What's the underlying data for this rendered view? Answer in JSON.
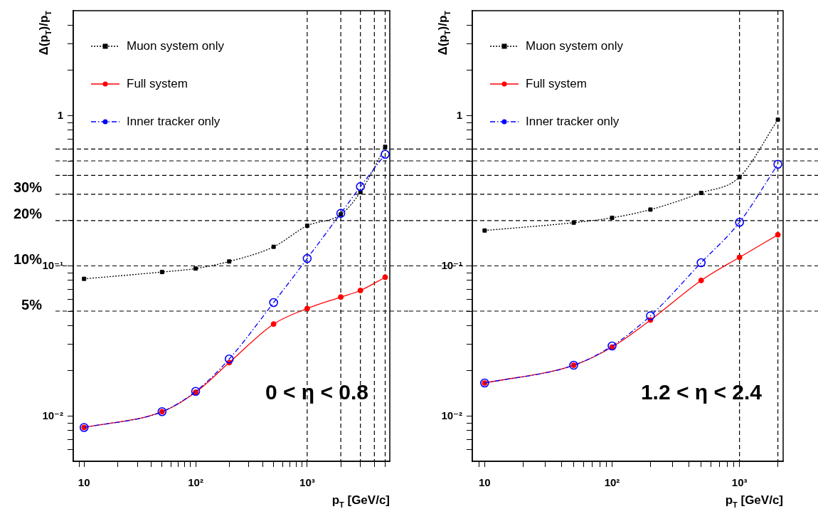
{
  "chart_data": [
    {
      "type": "line",
      "xlabel": "p$_{T}$ [GeV/c]",
      "ylabel": "Δ(p$_{T}$)/p$_{T}$",
      "log": "xy",
      "legend": "top left",
      "x": [
        10,
        50,
        100,
        200,
        500,
        1000,
        2000,
        3000,
        5000
      ],
      "series": [
        {
          "name": "Muon system only",
          "color": "#000000",
          "marker": "square",
          "line_style": "dotted",
          "values": [
            0.082,
            0.091,
            0.096,
            0.107,
            0.134,
            0.185,
            0.22,
            0.31,
            0.62
          ]
        },
        {
          "name": "Full system",
          "color": "#ff0000",
          "marker": "circle",
          "line_style": "solid",
          "values": [
            0.0084,
            0.0107,
            0.0144,
            0.0227,
            0.041,
            0.052,
            0.062,
            0.0686,
            0.084
          ]
        },
        {
          "name": "Inner tracker only",
          "color": "#0000ff",
          "marker": "circle",
          "line_style": "dashed",
          "values": [
            0.0084,
            0.0107,
            0.0146,
            0.024,
            0.057,
            0.112,
            0.224,
            0.337,
            0.553
          ]
        }
      ],
      "xlim": [
        8,
        5500
      ],
      "ylim": [
        0.005,
        5
      ],
      "xticks": [
        {
          "value": 9,
          "label": null
        },
        {
          "value": 10,
          "label": "10"
        },
        {
          "value": 20,
          "label": null
        },
        {
          "value": 30,
          "label": null
        },
        {
          "value": 40,
          "label": null
        },
        {
          "value": 50,
          "label": null
        },
        {
          "value": 60,
          "label": null
        },
        {
          "value": 70,
          "label": null
        },
        {
          "value": 80,
          "label": null
        },
        {
          "value": 90,
          "label": null
        },
        {
          "value": 100,
          "label": "10²"
        },
        {
          "value": 200,
          "label": null
        },
        {
          "value": 300,
          "label": null
        },
        {
          "value": 400,
          "label": null
        },
        {
          "value": 500,
          "label": null
        },
        {
          "value": 600,
          "label": null
        },
        {
          "value": 700,
          "label": null
        },
        {
          "value": 800,
          "label": null
        },
        {
          "value": 900,
          "label": null
        },
        {
          "value": 1000,
          "label": "10³"
        },
        {
          "value": 2000,
          "label": null
        },
        {
          "value": 3000,
          "label": null
        },
        {
          "value": 4000,
          "label": null
        },
        {
          "value": 5000,
          "label": null
        }
      ],
      "yticks": [
        {
          "value": 0.006,
          "label": null
        },
        {
          "value": 0.007,
          "label": null
        },
        {
          "value": 0.008,
          "label": null
        },
        {
          "value": 0.009,
          "label": null
        },
        {
          "value": 0.01,
          "label": "10⁻²"
        },
        {
          "value": 0.02,
          "label": null
        },
        {
          "value": 0.03,
          "label": null
        },
        {
          "value": 0.04,
          "label": null
        },
        {
          "value": 0.05,
          "label": null
        },
        {
          "value": 0.06,
          "label": null
        },
        {
          "value": 0.07,
          "label": null
        },
        {
          "value": 0.08,
          "label": null
        },
        {
          "value": 0.09,
          "label": null
        },
        {
          "value": 0.1,
          "label": "10⁻¹"
        },
        {
          "value": 0.2,
          "label": null
        },
        {
          "value": 0.3,
          "label": null
        },
        {
          "value": 0.4,
          "label": null
        },
        {
          "value": 0.5,
          "label": null
        },
        {
          "value": 0.6,
          "label": null
        },
        {
          "value": 0.7,
          "label": null
        },
        {
          "value": 0.8,
          "label": null
        },
        {
          "value": 0.9,
          "label": null
        },
        {
          "value": 1,
          "label": "1"
        },
        {
          "value": 2,
          "label": null
        },
        {
          "value": 3,
          "label": null
        },
        {
          "value": 4,
          "label": null
        }
      ],
      "ref_lines": [
        {
          "axis": "y",
          "value": 0.6,
          "label": null,
          "line_style": "dashed",
          "color": "#000000"
        },
        {
          "axis": "y",
          "value": 0.5,
          "label": null,
          "line_style": "dashed",
          "color": "#000000"
        },
        {
          "axis": "y",
          "value": 0.4,
          "label": null,
          "line_style": "dashed",
          "color": "#000000"
        },
        {
          "axis": "y",
          "value": 0.3,
          "label": "30%",
          "line_style": "dashed",
          "color": "#000000"
        },
        {
          "axis": "y",
          "value": 0.2,
          "label": "20%",
          "line_style": "dashed",
          "color": "#000000"
        },
        {
          "axis": "y",
          "value": 0.1,
          "label": "10%",
          "line_style": "dashed",
          "color": "#000000"
        },
        {
          "axis": "y",
          "value": 0.05,
          "label": "5%",
          "line_style": "dashed",
          "color": "#000000"
        },
        {
          "axis": "x",
          "value": 1000,
          "label": null,
          "line_style": "dashed",
          "color": "#000000"
        },
        {
          "axis": "x",
          "value": 2000,
          "label": null,
          "line_style": "dashed",
          "color": "#000000"
        },
        {
          "axis": "x",
          "value": 3000,
          "label": null,
          "line_style": "dashed",
          "color": "#000000"
        },
        {
          "axis": "x",
          "value": 4000,
          "label": null,
          "line_style": "dashed",
          "color": "#000000"
        },
        {
          "axis": "x",
          "value": 5000,
          "label": null,
          "line_style": "dashed",
          "color": "#000000"
        }
      ],
      "annotations": [
        "0 < η < 0.8"
      ]
    },
    {
      "type": "line",
      "xlabel": "p$_{T}$ [GeV/c]",
      "ylabel": "Δ(p$_{T}$)/p$_{T}$",
      "log": "xy",
      "legend": "top left",
      "x": [
        10,
        50,
        100,
        200,
        500,
        1000,
        2000
      ],
      "series": [
        {
          "name": "Muon system only",
          "color": "#000000",
          "marker": "square",
          "line_style": "dotted",
          "values": [
            0.172,
            0.194,
            0.209,
            0.237,
            0.306,
            0.39,
            0.94
          ]
        },
        {
          "name": "Full system",
          "color": "#ff0000",
          "marker": "circle",
          "line_style": "solid",
          "values": [
            0.0166,
            0.0218,
            0.0288,
            0.0436,
            0.08,
            0.114,
            0.161
          ]
        },
        {
          "name": "Inner tracker only",
          "color": "#0000ff",
          "marker": "circle",
          "line_style": "dashed",
          "values": [
            0.0166,
            0.0218,
            0.0293,
            0.0465,
            0.105,
            0.195,
            0.475
          ]
        }
      ],
      "xlim": [
        8,
        2200
      ],
      "ylim": [
        0.005,
        5
      ],
      "xticks": [
        {
          "value": 9,
          "label": null
        },
        {
          "value": 10,
          "label": "10"
        },
        {
          "value": 20,
          "label": null
        },
        {
          "value": 30,
          "label": null
        },
        {
          "value": 40,
          "label": null
        },
        {
          "value": 50,
          "label": null
        },
        {
          "value": 60,
          "label": null
        },
        {
          "value": 70,
          "label": null
        },
        {
          "value": 80,
          "label": null
        },
        {
          "value": 90,
          "label": null
        },
        {
          "value": 100,
          "label": "10²"
        },
        {
          "value": 200,
          "label": null
        },
        {
          "value": 300,
          "label": null
        },
        {
          "value": 400,
          "label": null
        },
        {
          "value": 500,
          "label": null
        },
        {
          "value": 600,
          "label": null
        },
        {
          "value": 700,
          "label": null
        },
        {
          "value": 800,
          "label": null
        },
        {
          "value": 900,
          "label": null
        },
        {
          "value": 1000,
          "label": "10³"
        },
        {
          "value": 2000,
          "label": null
        }
      ],
      "yticks": [
        {
          "value": 0.006,
          "label": null
        },
        {
          "value": 0.007,
          "label": null
        },
        {
          "value": 0.008,
          "label": null
        },
        {
          "value": 0.009,
          "label": null
        },
        {
          "value": 0.01,
          "label": "10⁻²"
        },
        {
          "value": 0.02,
          "label": null
        },
        {
          "value": 0.03,
          "label": null
        },
        {
          "value": 0.04,
          "label": null
        },
        {
          "value": 0.05,
          "label": null
        },
        {
          "value": 0.06,
          "label": null
        },
        {
          "value": 0.07,
          "label": null
        },
        {
          "value": 0.08,
          "label": null
        },
        {
          "value": 0.09,
          "label": null
        },
        {
          "value": 0.1,
          "label": "10⁻¹"
        },
        {
          "value": 0.2,
          "label": null
        },
        {
          "value": 0.3,
          "label": null
        },
        {
          "value": 0.4,
          "label": null
        },
        {
          "value": 0.5,
          "label": null
        },
        {
          "value": 0.6,
          "label": null
        },
        {
          "value": 0.7,
          "label": null
        },
        {
          "value": 0.8,
          "label": null
        },
        {
          "value": 0.9,
          "label": null
        },
        {
          "value": 1,
          "label": "1"
        },
        {
          "value": 2,
          "label": null
        },
        {
          "value": 3,
          "label": null
        },
        {
          "value": 4,
          "label": null
        }
      ],
      "ref_lines": [
        {
          "axis": "y",
          "value": 0.6,
          "label": null,
          "line_style": "dashed",
          "color": "#000000"
        },
        {
          "axis": "y",
          "value": 0.5,
          "label": null,
          "line_style": "dashed",
          "color": "#000000"
        },
        {
          "axis": "y",
          "value": 0.4,
          "label": null,
          "line_style": "dashed",
          "color": "#000000"
        },
        {
          "axis": "y",
          "value": 0.3,
          "label": null,
          "line_style": "dashed",
          "color": "#000000"
        },
        {
          "axis": "y",
          "value": 0.2,
          "label": null,
          "line_style": "dashed",
          "color": "#000000"
        },
        {
          "axis": "y",
          "value": 0.1,
          "label": null,
          "line_style": "dashed",
          "color": "#000000"
        },
        {
          "axis": "y",
          "value": 0.05,
          "label": null,
          "line_style": "dashed",
          "color": "#000000"
        },
        {
          "axis": "x",
          "value": 1000,
          "label": null,
          "line_style": "dashed",
          "color": "#000000"
        },
        {
          "axis": "x",
          "value": 2000,
          "label": null,
          "line_style": "dashed",
          "color": "#000000"
        }
      ],
      "annotations": [
        "1.2 < η < 2.4"
      ]
    }
  ]
}
